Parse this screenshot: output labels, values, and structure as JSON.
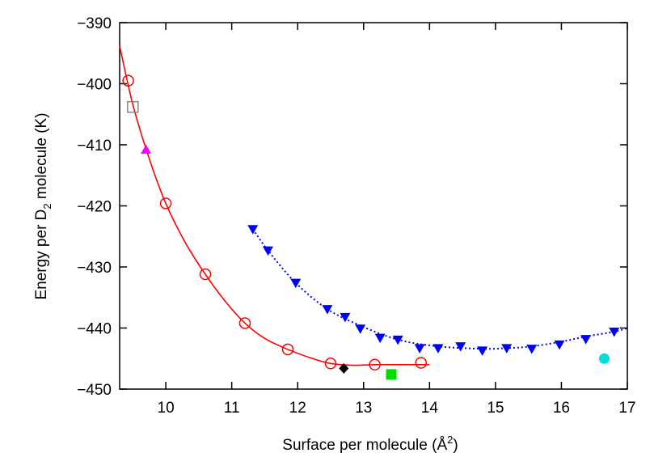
{
  "chart_data": {
    "type": "scatter",
    "title": "",
    "xlabel": {
      "prefix": "Surface per molecule (Å",
      "sup": "2",
      "suffix": ")"
    },
    "ylabel": {
      "prefix": "Energy per D",
      "sub": "2",
      "suffix": " molecule (K)"
    },
    "xlim": [
      9.3,
      17
    ],
    "ylim": [
      -450,
      -390
    ],
    "xticks": [
      10,
      11,
      12,
      13,
      14,
      15,
      16,
      17
    ],
    "yticks": [
      -450,
      -440,
      -430,
      -420,
      -410,
      -400,
      -390
    ],
    "tick_label_minus": "−",
    "series": [
      {
        "marker": "open-circle",
        "color": "#ff0000",
        "x": [
          9.43,
          10.0,
          10.6,
          11.2,
          11.85,
          12.5,
          13.17,
          13.87
        ],
        "y": [
          -399.5,
          -419.6,
          -431.2,
          -439.2,
          -443.5,
          -445.8,
          -446.0,
          -445.7
        ]
      },
      {
        "marker": "solid-line",
        "color": "#ff0000",
        "x": [
          9.3,
          9.5,
          9.75,
          10.0,
          10.3,
          10.6,
          10.9,
          11.2,
          11.5,
          11.85,
          12.2,
          12.5,
          12.85,
          13.17,
          13.5,
          13.87,
          14.0
        ],
        "y": [
          -393.8,
          -403.4,
          -412.3,
          -419.6,
          -426.1,
          -431.2,
          -435.6,
          -439.2,
          -441.7,
          -443.5,
          -444.9,
          -445.8,
          -446.1,
          -446.0,
          -446.0,
          -446.0,
          -446.0
        ]
      },
      {
        "marker": "filled-down-triangle",
        "color": "#0000ff",
        "x": [
          11.32,
          11.55,
          11.97,
          12.45,
          12.72,
          12.95,
          13.25,
          13.52,
          13.85,
          14.13,
          14.47,
          14.8,
          15.17,
          15.55,
          15.97,
          16.37,
          16.8
        ],
        "y": [
          -423.8,
          -427.3,
          -432.6,
          -436.9,
          -438.2,
          -440.1,
          -441.6,
          -441.9,
          -443.3,
          -443.3,
          -443.0,
          -443.7,
          -443.3,
          -443.4,
          -442.7,
          -441.8,
          -440.6
        ]
      },
      {
        "marker": "dotted-line",
        "color": "#0000ff",
        "x": [
          11.32,
          11.55,
          11.97,
          12.45,
          12.95,
          13.52,
          14.13,
          14.8,
          15.17,
          15.55,
          15.97,
          16.37,
          16.8,
          17.0
        ],
        "y": [
          -423.8,
          -427.3,
          -432.6,
          -436.9,
          -439.6,
          -441.9,
          -443.0,
          -443.4,
          -443.3,
          -443.0,
          -442.3,
          -441.4,
          -440.6,
          -440.0
        ]
      },
      {
        "marker": "open-square",
        "color": "#888888",
        "x": [
          9.5
        ],
        "y": [
          -403.8
        ]
      },
      {
        "marker": "filled-up-triangle",
        "color": "#ff00ff",
        "x": [
          9.7
        ],
        "y": [
          -410.8
        ]
      },
      {
        "marker": "filled-diamond",
        "color": "#000000",
        "x": [
          12.7
        ],
        "y": [
          -446.6
        ]
      },
      {
        "marker": "filled-square",
        "color": "#00dd00",
        "x": [
          13.42
        ],
        "y": [
          -447.6
        ]
      },
      {
        "marker": "filled-circle",
        "color": "#00dddd",
        "x": [
          16.65
        ],
        "y": [
          -445.0
        ]
      }
    ],
    "grid": false,
    "legend": "none"
  }
}
